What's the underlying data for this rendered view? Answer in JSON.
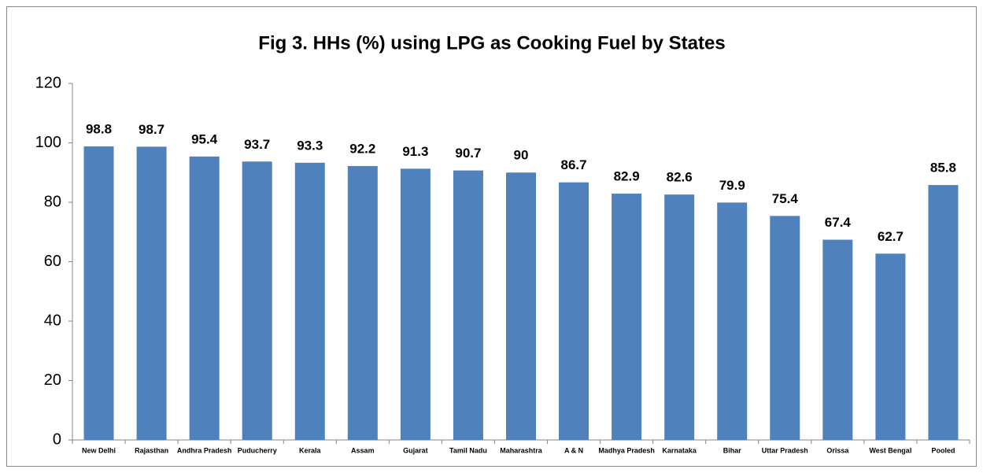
{
  "chart_data": {
    "type": "bar",
    "title": "Fig 3. HHs (%) using LPG as Cooking Fuel by States",
    "categories": [
      "New Delhi",
      "Rajasthan",
      "Andhra Pradesh",
      "Puducherry",
      "Kerala",
      "Assam",
      "Gujarat",
      "Tamil Nadu",
      "Maharashtra",
      "A & N",
      "Madhya Pradesh",
      "Karnataka",
      "Bihar",
      "Uttar Pradesh",
      "Orissa",
      "West Bengal",
      "Pooled"
    ],
    "values": [
      98.8,
      98.7,
      95.4,
      93.7,
      93.3,
      92.2,
      91.3,
      90.7,
      90,
      86.7,
      82.9,
      82.6,
      79.9,
      75.4,
      67.4,
      62.7,
      85.8
    ],
    "color": "#4f81bd",
    "ylim": [
      0,
      120
    ],
    "yticks": [
      0,
      20,
      40,
      60,
      80,
      100,
      120
    ],
    "grid": false
  }
}
